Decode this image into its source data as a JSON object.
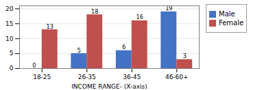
{
  "chart_data": {
    "type": "bar",
    "categories": [
      "18-25",
      "26-35",
      "36-45",
      "46-60+"
    ],
    "series": [
      {
        "name": "Male",
        "color": "#4472C4",
        "values": [
          0,
          5,
          6,
          19
        ]
      },
      {
        "name": "Female",
        "color": "#C0504D",
        "values": [
          13,
          18,
          16,
          3
        ]
      }
    ],
    "xlabel": "INCOME RANGE- (X-axis)",
    "ylim": [
      0,
      21
    ],
    "yticks": [
      0,
      5,
      10,
      15,
      20
    ],
    "grid": true,
    "legend": "right",
    "data_labels": true
  }
}
